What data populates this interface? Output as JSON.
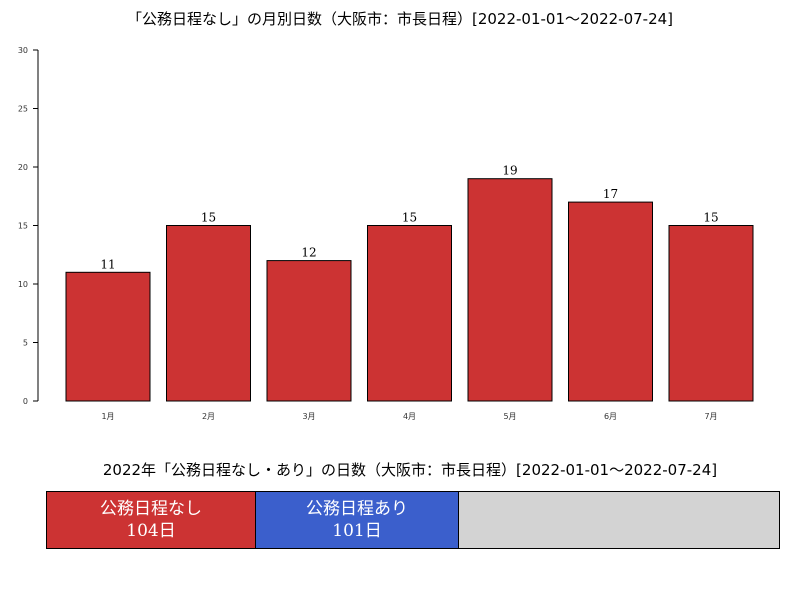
{
  "chart_data": [
    {
      "type": "bar",
      "title": "「公務日程なし」の月別日数（大阪市：市長日程）[2022-01-01〜2022-07-24]",
      "categories": [
        "1月",
        "2月",
        "3月",
        "4月",
        "5月",
        "6月",
        "7月"
      ],
      "values": [
        11,
        15,
        12,
        15,
        19,
        17,
        15
      ],
      "ylim": [
        0,
        30
      ],
      "yticks": [
        0,
        5,
        10,
        15,
        20,
        25,
        30
      ],
      "xlabel": "",
      "ylabel": "",
      "grid": false,
      "bar_color": "#cc3333"
    },
    {
      "type": "bar",
      "title": "2022年「公務日程なし・あり」の日数（大阪市：市長日程）[2022-01-01〜2022-07-24]",
      "orientation": "horizontal-stacked",
      "total": 365,
      "series": [
        {
          "name": "公務日程なし",
          "value": 104,
          "value_label": "104日",
          "color": "#cc3333"
        },
        {
          "name": "公務日程あり",
          "value": 101,
          "value_label": "101日",
          "color": "#3b5fcc"
        }
      ],
      "remainder_color": "#d3d3d3"
    }
  ]
}
